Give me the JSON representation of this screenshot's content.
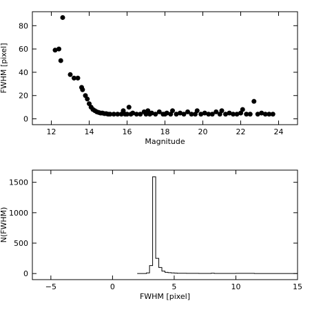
{
  "chart_data": [
    {
      "type": "scatter",
      "title": "",
      "xlabel": "Magnitude",
      "ylabel": "FWHM [pixel]",
      "xlim": [
        11,
        25
      ],
      "ylim": [
        -5,
        92
      ],
      "xticks": [
        "12",
        "14",
        "16",
        "18",
        "20",
        "22",
        "24"
      ],
      "yticks": [
        "0",
        "20",
        "40",
        "60",
        "80"
      ],
      "grid": false,
      "points": [
        [
          12.2,
          59
        ],
        [
          12.4,
          60
        ],
        [
          12.5,
          50
        ],
        [
          12.6,
          87
        ],
        [
          13.0,
          38
        ],
        [
          13.2,
          35
        ],
        [
          13.4,
          35
        ],
        [
          13.6,
          27
        ],
        [
          13.65,
          25
        ],
        [
          13.8,
          20
        ],
        [
          13.9,
          17
        ],
        [
          14.0,
          13
        ],
        [
          14.1,
          10
        ],
        [
          14.2,
          8
        ],
        [
          14.3,
          7
        ],
        [
          14.4,
          6
        ],
        [
          14.5,
          5.5
        ],
        [
          14.6,
          5
        ],
        [
          14.7,
          5
        ],
        [
          14.8,
          4.5
        ],
        [
          14.9,
          4.5
        ],
        [
          15.0,
          4
        ],
        [
          15.1,
          4
        ],
        [
          15.3,
          4
        ],
        [
          15.5,
          4
        ],
        [
          15.7,
          4
        ],
        [
          15.8,
          7
        ],
        [
          15.9,
          4
        ],
        [
          16.0,
          4
        ],
        [
          16.1,
          10
        ],
        [
          16.2,
          4
        ],
        [
          16.3,
          5
        ],
        [
          16.5,
          4
        ],
        [
          16.7,
          4
        ],
        [
          16.9,
          6
        ],
        [
          17.0,
          4
        ],
        [
          17.1,
          7
        ],
        [
          17.2,
          4
        ],
        [
          17.3,
          5
        ],
        [
          17.5,
          4
        ],
        [
          17.7,
          6
        ],
        [
          17.9,
          4
        ],
        [
          18.0,
          4
        ],
        [
          18.1,
          5
        ],
        [
          18.3,
          4
        ],
        [
          18.4,
          7
        ],
        [
          18.6,
          4
        ],
        [
          18.8,
          5
        ],
        [
          19.0,
          4
        ],
        [
          19.2,
          6
        ],
        [
          19.4,
          4
        ],
        [
          19.6,
          4
        ],
        [
          19.7,
          7
        ],
        [
          19.9,
          4
        ],
        [
          20.1,
          5
        ],
        [
          20.3,
          4
        ],
        [
          20.5,
          4
        ],
        [
          20.7,
          6
        ],
        [
          20.9,
          4
        ],
        [
          21.0,
          7
        ],
        [
          21.2,
          4
        ],
        [
          21.4,
          5
        ],
        [
          21.6,
          4
        ],
        [
          21.8,
          4
        ],
        [
          22.0,
          5
        ],
        [
          22.1,
          8
        ],
        [
          22.3,
          4
        ],
        [
          22.5,
          4
        ],
        [
          22.7,
          15
        ],
        [
          22.9,
          4
        ],
        [
          23.1,
          5
        ],
        [
          23.3,
          4
        ],
        [
          23.5,
          4
        ],
        [
          23.7,
          4
        ]
      ]
    },
    {
      "type": "line",
      "title": "",
      "xlabel": "FWHM [pixel]",
      "ylabel": "N(FWHM)",
      "xlim": [
        -6.5,
        15
      ],
      "ylim": [
        -100,
        1700
      ],
      "xticks": [
        "-5",
        "0",
        "5",
        "10",
        "15"
      ],
      "yticks": [
        "0",
        "500",
        "1000",
        "1500"
      ],
      "grid": false,
      "histogram": {
        "bin_width": 0.25,
        "bins": [
          [
            2.0,
            0
          ],
          [
            2.25,
            0
          ],
          [
            2.5,
            0
          ],
          [
            2.75,
            10
          ],
          [
            3.0,
            130
          ],
          [
            3.25,
            1590
          ],
          [
            3.5,
            250
          ],
          [
            3.75,
            100
          ],
          [
            4.0,
            40
          ],
          [
            4.25,
            20
          ],
          [
            4.5,
            15
          ],
          [
            4.75,
            10
          ],
          [
            5.0,
            8
          ],
          [
            5.25,
            5
          ],
          [
            5.5,
            5
          ],
          [
            6.0,
            3
          ],
          [
            7.0,
            2
          ],
          [
            8.0,
            6
          ],
          [
            8.25,
            2
          ],
          [
            9.0,
            2
          ],
          [
            10.0,
            4
          ],
          [
            11.0,
            3
          ],
          [
            11.5,
            0
          ],
          [
            12.0,
            0
          ],
          [
            13.0,
            0
          ],
          [
            14.0,
            0
          ],
          [
            14.75,
            0
          ]
        ]
      }
    }
  ]
}
